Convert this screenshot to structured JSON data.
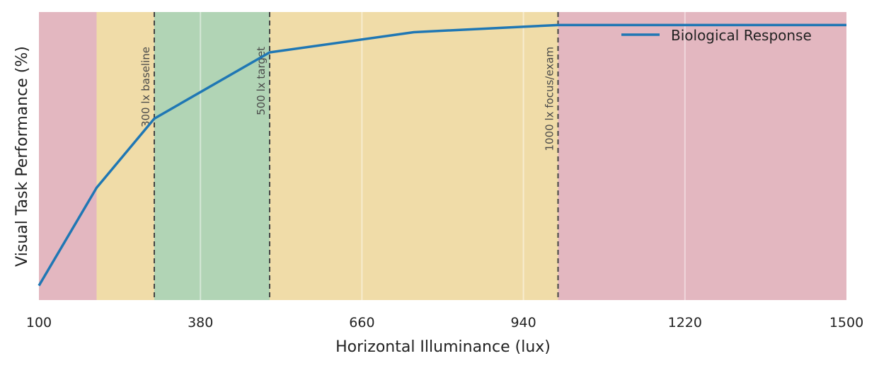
{
  "chart_data": {
    "type": "line",
    "title": "",
    "xlabel": "Horizontal Illuminance (lux)",
    "ylabel": "Visual Task Performance (%)",
    "xlim": [
      100,
      1500
    ],
    "ylim": [
      0,
      100
    ],
    "xticks": [
      100,
      380,
      660,
      940,
      1220,
      1500
    ],
    "grid": true,
    "legend_position": "top-right",
    "series": [
      {
        "name": "Biological Response",
        "color": "#1f77b4",
        "x": [
          100,
          200,
          300,
          500,
          750,
          1000,
          1500
        ],
        "y": [
          5,
          39,
          63,
          86,
          93,
          95.5,
          95.5
        ]
      }
    ],
    "bands": [
      {
        "x0": 100,
        "x1": 200,
        "color": "#e3b7c0"
      },
      {
        "x0": 200,
        "x1": 300,
        "color": "#f0dca8"
      },
      {
        "x0": 300,
        "x1": 500,
        "color": "#b1d4b5"
      },
      {
        "x0": 500,
        "x1": 1000,
        "color": "#f0dca8"
      },
      {
        "x0": 1000,
        "x1": 1500,
        "color": "#e3b7c0"
      }
    ],
    "vlines": [
      {
        "x": 300,
        "label": "300 lx baseline"
      },
      {
        "x": 500,
        "label": "500 lx target"
      },
      {
        "x": 1000,
        "label": "1000 lx focus/exam"
      }
    ]
  }
}
